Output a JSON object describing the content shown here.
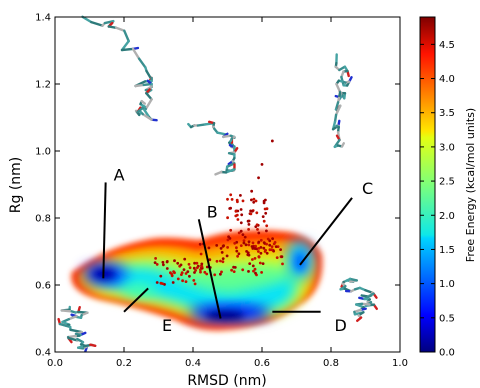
{
  "chart_data": {
    "type": "scatter",
    "title": "",
    "xlabel": "RMSD (nm)",
    "ylabel": "Rg (nm)",
    "xlim": [
      0.0,
      1.0
    ],
    "ylim": [
      0.4,
      1.4
    ],
    "xticks": [
      "0.0",
      "0.2",
      "0.4",
      "0.6",
      "0.8",
      "1.0"
    ],
    "yticks": [
      "0.4",
      "0.6",
      "0.8",
      "1.0",
      "1.2",
      "1.4"
    ],
    "colorbar": {
      "label": "Free Energy (kcal/mol units)",
      "range": [
        0.0,
        4.9
      ],
      "ticks": [
        "0.0",
        "0.5",
        "1.0",
        "1.5",
        "2.0",
        "2.5",
        "3.0",
        "3.5",
        "4.0",
        "4.5"
      ],
      "colormap": "jet"
    },
    "basins": [
      {
        "label": "A",
        "rmsd": 0.14,
        "rg": 0.62,
        "energy": 0.4
      },
      {
        "label": "B",
        "rmsd": 0.48,
        "rg": 0.5,
        "energy": 0.2
      },
      {
        "label": "C",
        "rmsd": 0.71,
        "rg": 0.67,
        "energy": 1.0
      },
      {
        "label": "D",
        "rmsd": 0.64,
        "rg": 0.52,
        "energy": 0.8
      },
      {
        "label": "E",
        "rmsd": 0.25,
        "rg": 0.58,
        "energy": 1.5
      }
    ],
    "annotations": [
      {
        "text": "A",
        "label_x": 0.17,
        "label_y": 0.93,
        "to_x": 0.14,
        "to_y": 0.62
      },
      {
        "text": "B",
        "label_x": 0.44,
        "label_y": 0.82,
        "to_x": 0.48,
        "to_y": 0.5
      },
      {
        "text": "C",
        "label_x": 0.89,
        "label_y": 0.89,
        "to_x": 0.71,
        "to_y": 0.66
      },
      {
        "text": "D",
        "label_x": 0.81,
        "label_y": 0.48,
        "to_x": 0.66,
        "to_y": 0.52
      },
      {
        "text": "E",
        "label_x": 0.31,
        "label_y": 0.48,
        "to_x": 0.26,
        "to_y": 0.59
      }
    ],
    "legend": "none",
    "grid": false
  }
}
